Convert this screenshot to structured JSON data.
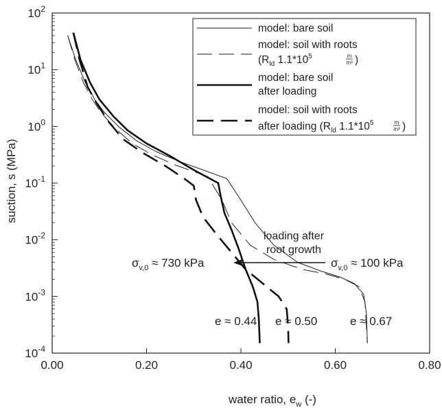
{
  "chart_data": {
    "type": "line",
    "xlabel": "water ratio, e",
    "xlabel_sub": "w",
    "xlabel_unit": " (-)",
    "ylabel": "suction, s (MPa)",
    "xlim": [
      0,
      0.8
    ],
    "ylim": [
      0.0001,
      100
    ],
    "y_scale": "log",
    "grid": false,
    "legend_placement": "top-right",
    "x_ticks": [
      {
        "value": 0.0,
        "label": "0.00"
      },
      {
        "value": 0.2,
        "label": "0.20"
      },
      {
        "value": 0.4,
        "label": "0.40"
      },
      {
        "value": 0.6,
        "label": "0.60"
      },
      {
        "value": 0.8,
        "label": "0.80"
      }
    ],
    "y_ticks": [
      {
        "value": 0.0001,
        "base": "10",
        "exp": "-4"
      },
      {
        "value": 0.001,
        "base": "10",
        "exp": "-3"
      },
      {
        "value": 0.01,
        "base": "10",
        "exp": "-2"
      },
      {
        "value": 0.1,
        "base": "10",
        "exp": "-1"
      },
      {
        "value": 1,
        "base": "10",
        "exp": "0"
      },
      {
        "value": 10,
        "base": "10",
        "exp": "1"
      },
      {
        "value": 100,
        "base": "10",
        "exp": "2"
      }
    ],
    "series": [
      {
        "name": "model: bare soil",
        "color": "#222222",
        "width": 1.0,
        "dash": "",
        "points": [
          [
            0.033,
            40
          ],
          [
            0.05,
            15
          ],
          [
            0.07,
            6
          ],
          [
            0.09,
            3
          ],
          [
            0.11,
            1.8
          ],
          [
            0.14,
            1.0
          ],
          [
            0.18,
            0.55
          ],
          [
            0.22,
            0.36
          ],
          [
            0.27,
            0.24
          ],
          [
            0.32,
            0.17
          ],
          [
            0.37,
            0.12
          ],
          [
            0.38,
            0.09
          ],
          [
            0.4,
            0.05
          ],
          [
            0.43,
            0.02
          ],
          [
            0.47,
            0.008
          ],
          [
            0.52,
            0.004
          ],
          [
            0.57,
            0.0028
          ],
          [
            0.61,
            0.0022
          ],
          [
            0.64,
            0.0017
          ],
          [
            0.66,
            0.0011
          ],
          [
            0.666,
            0.0005
          ],
          [
            0.668,
            0.00015
          ]
        ]
      },
      {
        "name": "model: soil with roots",
        "name_line2_prefix": "(R",
        "name_line2_sub": "ld",
        "name_line2_text": " 1.1*10",
        "name_line2_sup": "5",
        "name_line2_frac_num": "m",
        "name_line2_frac_den": "m³",
        "name_line2_suffix": ")",
        "color": "#222222",
        "width": 1.0,
        "dash": "22,10",
        "points": [
          [
            0.033,
            40
          ],
          [
            0.048,
            15
          ],
          [
            0.066,
            6
          ],
          [
            0.085,
            3
          ],
          [
            0.105,
            1.7
          ],
          [
            0.135,
            0.9
          ],
          [
            0.17,
            0.5
          ],
          [
            0.21,
            0.32
          ],
          [
            0.26,
            0.21
          ],
          [
            0.3,
            0.16
          ],
          [
            0.33,
            0.13
          ],
          [
            0.345,
            0.08
          ],
          [
            0.36,
            0.05
          ],
          [
            0.38,
            0.02
          ],
          [
            0.42,
            0.008
          ],
          [
            0.47,
            0.0045
          ],
          [
            0.53,
            0.003
          ],
          [
            0.58,
            0.0025
          ],
          [
            0.62,
            0.002
          ],
          [
            0.65,
            0.0015
          ],
          [
            0.663,
            0.0008
          ],
          [
            0.668,
            0.00015
          ]
        ]
      },
      {
        "name": "model: bare soil",
        "name_line2": "after loading",
        "color": "#111111",
        "width": 2.6,
        "dash": "",
        "points": [
          [
            0.045,
            45
          ],
          [
            0.06,
            15
          ],
          [
            0.08,
            6
          ],
          [
            0.1,
            3
          ],
          [
            0.13,
            1.5
          ],
          [
            0.16,
            0.85
          ],
          [
            0.2,
            0.5
          ],
          [
            0.25,
            0.3
          ],
          [
            0.3,
            0.17
          ],
          [
            0.352,
            0.1
          ],
          [
            0.357,
            0.06
          ],
          [
            0.365,
            0.03
          ],
          [
            0.38,
            0.015
          ],
          [
            0.395,
            0.007
          ],
          [
            0.41,
            0.003
          ],
          [
            0.425,
            0.0015
          ],
          [
            0.435,
            0.0008
          ],
          [
            0.438,
            0.0004
          ],
          [
            0.44,
            0.00015
          ]
        ]
      },
      {
        "name": "model: soil with roots",
        "name_line2_prefix": "after loading (R",
        "name_line2_sub": "ld",
        "name_line2_text": " 1.1*10",
        "name_line2_sup": "5",
        "name_line2_frac_num": "m",
        "name_line2_frac_den": "m³",
        "name_line2_suffix": ")",
        "color": "#111111",
        "width": 2.6,
        "dash": "24,11",
        "points": [
          [
            0.045,
            45
          ],
          [
            0.058,
            15
          ],
          [
            0.075,
            5
          ],
          [
            0.095,
            2.5
          ],
          [
            0.12,
            1.2
          ],
          [
            0.15,
            0.6
          ],
          [
            0.19,
            0.35
          ],
          [
            0.24,
            0.2
          ],
          [
            0.28,
            0.12
          ],
          [
            0.3,
            0.09
          ],
          [
            0.305,
            0.05
          ],
          [
            0.32,
            0.025
          ],
          [
            0.35,
            0.012
          ],
          [
            0.38,
            0.006
          ],
          [
            0.41,
            0.003
          ],
          [
            0.45,
            0.0016
          ],
          [
            0.48,
            0.001
          ],
          [
            0.497,
            0.0006
          ],
          [
            0.5,
            0.0003
          ],
          [
            0.501,
            0.00015
          ]
        ]
      }
    ],
    "annotations": {
      "loading_line1": "loading after",
      "loading_line2": "root growth",
      "sigma_left_base": "σ",
      "sigma_left_sub": "v,0",
      "sigma_left_text": " ≈ 730 kPa",
      "sigma_right_base": "σ",
      "sigma_right_sub": "v,0",
      "sigma_right_text": " ≈ 100 kPa",
      "e1": "e ≈ 0.44",
      "e2": "e ≈ 0.50",
      "e3": "e ≈ 0.67"
    }
  }
}
